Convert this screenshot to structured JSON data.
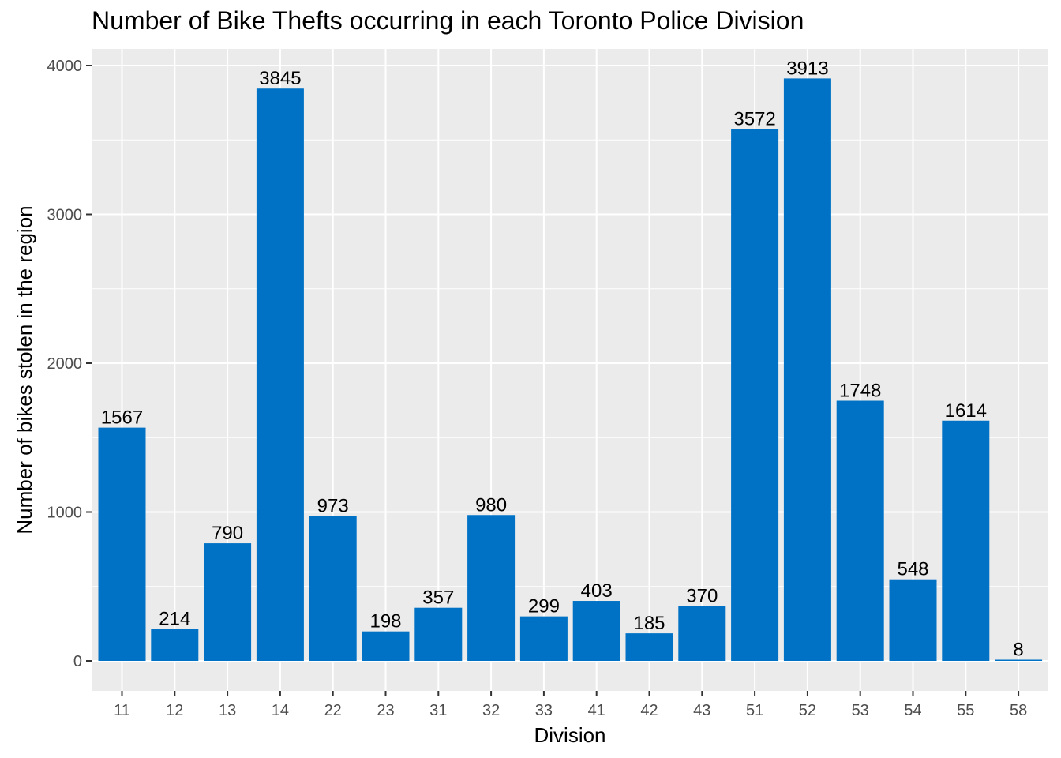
{
  "chart_data": {
    "type": "bar",
    "title": "Number of Bike Thefts occurring in each Toronto Police Division",
    "xlabel": "Division",
    "ylabel": "Number of bikes stolen in the region",
    "categories": [
      "11",
      "12",
      "13",
      "14",
      "22",
      "23",
      "31",
      "32",
      "33",
      "41",
      "42",
      "43",
      "51",
      "52",
      "53",
      "54",
      "55",
      "58"
    ],
    "values": [
      1567,
      214,
      790,
      3845,
      973,
      198,
      357,
      980,
      299,
      403,
      185,
      370,
      3572,
      3913,
      1748,
      548,
      1614,
      8
    ],
    "yticks": [
      0,
      1000,
      2000,
      3000,
      4000
    ],
    "ylim": [
      0,
      4000
    ],
    "grid": true,
    "bar_color": "#0072C6",
    "panel_color": "#EBEBEB",
    "grid_color": "#FFFFFF"
  }
}
